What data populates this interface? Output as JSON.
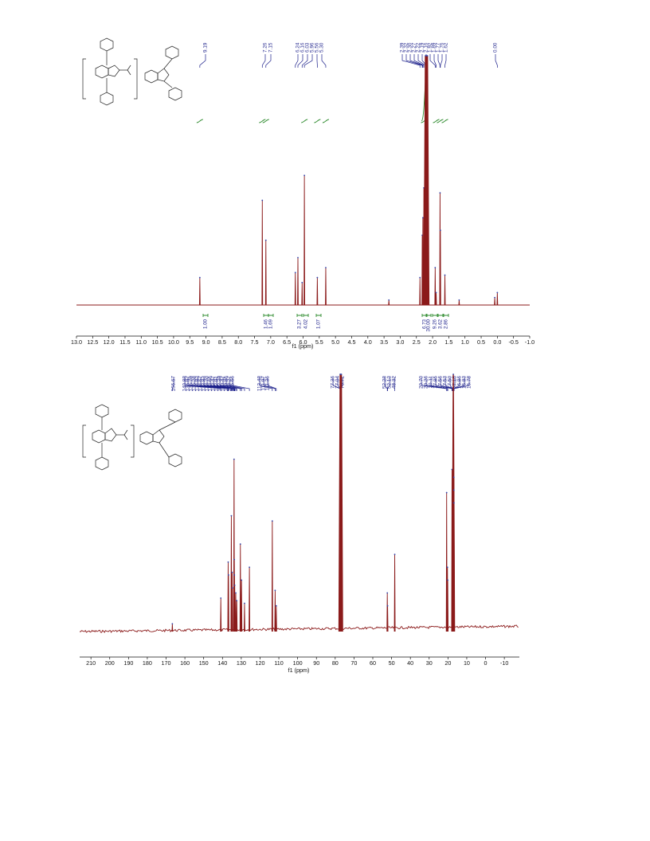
{
  "chart_data": [
    {
      "type": "line",
      "xlabel": "f1 (ppm)",
      "x_reversed": true,
      "xlim": [
        13.0,
        -1.0
      ],
      "xticks": [
        "13.0",
        "12.5",
        "12.0",
        "11.5",
        "11.0",
        "10.5",
        "10.0",
        "9.5",
        "9.0",
        "8.5",
        "8.0",
        "7.5",
        "7.0",
        "6.5",
        "6.0",
        "5.5",
        "5.0",
        "4.5",
        "4.0",
        "3.5",
        "3.0",
        "2.5",
        "2.0",
        "1.5",
        "1.0",
        "0.5",
        "0.0",
        "-0.5",
        "-1.0"
      ],
      "xtick_values": [
        13.0,
        12.5,
        12.0,
        11.5,
        11.0,
        10.5,
        10.0,
        9.5,
        9.0,
        8.5,
        8.0,
        7.5,
        7.0,
        6.5,
        6.0,
        5.5,
        5.0,
        4.5,
        4.0,
        3.5,
        3.0,
        2.5,
        2.0,
        1.5,
        1.0,
        0.5,
        0.0,
        -0.5,
        -1.0
      ],
      "peak_labels": [
        {
          "group": "9.19",
          "items": [
            "9.19"
          ]
        },
        {
          "group": "7.2",
          "items": [
            "7.26",
            "7.15"
          ]
        },
        {
          "group": "6",
          "items": [
            "6.24",
            "6.16",
            "6.03",
            "5.96",
            "5.56",
            "5.30"
          ]
        },
        {
          "group": "2",
          "items": [
            "2.39",
            "2.32",
            "2.30",
            "2.27",
            "2.22",
            "2.19",
            "2.16",
            "1.92",
            "1.89",
            "1.77",
            "1.76",
            "1.62"
          ]
        },
        {
          "group": "0",
          "items": [
            "0.00"
          ]
        }
      ],
      "integrals": [
        {
          "ppm": 9.19,
          "value": "1.00"
        },
        {
          "ppm": 7.26,
          "value": "1.46"
        },
        {
          "ppm": 7.15,
          "value": "1.69"
        },
        {
          "ppm": 5.96,
          "value": "3.27"
        },
        {
          "ppm": 5.56,
          "value": "4.02"
        },
        {
          "ppm": 5.3,
          "value": "1.07"
        },
        {
          "ppm": 2.26,
          "value": "6.73"
        },
        {
          "ppm": 2.19,
          "value": "30.00"
        },
        {
          "ppm": 1.89,
          "value": "9.26"
        },
        {
          "ppm": 1.77,
          "value": "3.62"
        },
        {
          "ppm": 1.62,
          "value": "2.86"
        }
      ],
      "peaks": [
        {
          "x": 9.19,
          "y": 0.11
        },
        {
          "x": 7.26,
          "y": 0.42
        },
        {
          "x": 7.15,
          "y": 0.26
        },
        {
          "x": 6.24,
          "y": 0.13
        },
        {
          "x": 6.16,
          "y": 0.19
        },
        {
          "x": 6.03,
          "y": 0.09
        },
        {
          "x": 5.96,
          "y": 0.52
        },
        {
          "x": 5.56,
          "y": 0.11
        },
        {
          "x": 5.3,
          "y": 0.15
        },
        {
          "x": 3.35,
          "y": 0.02
        },
        {
          "x": 2.39,
          "y": 0.11
        },
        {
          "x": 2.32,
          "y": 0.28
        },
        {
          "x": 2.3,
          "y": 0.35
        },
        {
          "x": 2.27,
          "y": 0.47
        },
        {
          "x": 2.22,
          "y": 1.0
        },
        {
          "x": 2.19,
          "y": 1.0
        },
        {
          "x": 2.16,
          "y": 1.0
        },
        {
          "x": 1.92,
          "y": 0.15
        },
        {
          "x": 1.89,
          "y": 0.05
        },
        {
          "x": 1.77,
          "y": 0.45
        },
        {
          "x": 1.76,
          "y": 0.3
        },
        {
          "x": 1.62,
          "y": 0.12
        },
        {
          "x": 1.18,
          "y": 0.02
        },
        {
          "x": 0.08,
          "y": 0.03
        },
        {
          "x": 0.0,
          "y": 0.05
        }
      ]
    },
    {
      "type": "line",
      "xlabel": "f1 (ppm)",
      "x_reversed": true,
      "xlim": [
        216,
        -18
      ],
      "xticks": [
        "210",
        "200",
        "190",
        "180",
        "170",
        "160",
        "150",
        "140",
        "130",
        "120",
        "110",
        "100",
        "90",
        "80",
        "70",
        "60",
        "50",
        "40",
        "30",
        "20",
        "10",
        "0",
        "-10"
      ],
      "xtick_values": [
        210,
        200,
        190,
        180,
        170,
        160,
        150,
        140,
        130,
        120,
        110,
        100,
        90,
        80,
        70,
        60,
        50,
        40,
        30,
        20,
        10,
        0,
        -10
      ],
      "peak_labels": [
        {
          "group": "166",
          "items": [
            "166.67"
          ]
        },
        {
          "group": "aromatic",
          "items": [
            "140.88",
            "136.97",
            "136.79",
            "135.28",
            "134.83",
            "134.67",
            "133.83",
            "133.70",
            "133.65",
            "133.47",
            "132.91",
            "132.39",
            "130.47",
            "129.85",
            "128.27",
            "125.66",
            "113.48",
            "111.97",
            "111.36"
          ]
        },
        {
          "group": "cdcl3",
          "items": [
            "77.36",
            "77.04",
            "76.72"
          ]
        },
        {
          "group": "50",
          "items": [
            "52.28",
            "52.13",
            "48.32"
          ]
        },
        {
          "group": "aliphatic",
          "items": [
            "20.70",
            "20.26",
            "20.11",
            "17.85",
            "17.56",
            "17.53",
            "17.50",
            "17.15",
            "16.86",
            "16.83",
            "16.78"
          ]
        }
      ],
      "peaks": [
        {
          "x": 166.67,
          "y": 0.03
        },
        {
          "x": 140.88,
          "y": 0.13
        },
        {
          "x": 136.97,
          "y": 0.27
        },
        {
          "x": 136.79,
          "y": 0.22
        },
        {
          "x": 135.28,
          "y": 0.45
        },
        {
          "x": 134.83,
          "y": 0.23
        },
        {
          "x": 134.67,
          "y": 0.17
        },
        {
          "x": 133.83,
          "y": 0.67
        },
        {
          "x": 133.7,
          "y": 0.28
        },
        {
          "x": 133.65,
          "y": 0.22
        },
        {
          "x": 133.47,
          "y": 0.18
        },
        {
          "x": 132.91,
          "y": 0.15
        },
        {
          "x": 132.39,
          "y": 0.12
        },
        {
          "x": 130.47,
          "y": 0.34
        },
        {
          "x": 129.85,
          "y": 0.2
        },
        {
          "x": 128.27,
          "y": 0.11
        },
        {
          "x": 125.66,
          "y": 0.25
        },
        {
          "x": 113.48,
          "y": 0.43
        },
        {
          "x": 111.97,
          "y": 0.16
        },
        {
          "x": 111.36,
          "y": 0.1
        },
        {
          "x": 77.36,
          "y": 1.0
        },
        {
          "x": 77.04,
          "y": 1.0
        },
        {
          "x": 76.72,
          "y": 1.0
        },
        {
          "x": 52.28,
          "y": 0.15
        },
        {
          "x": 52.13,
          "y": 0.1
        },
        {
          "x": 48.32,
          "y": 0.3
        },
        {
          "x": 20.7,
          "y": 0.54
        },
        {
          "x": 20.26,
          "y": 0.25
        },
        {
          "x": 20.11,
          "y": 0.2
        },
        {
          "x": 17.85,
          "y": 0.63
        },
        {
          "x": 17.56,
          "y": 0.5
        },
        {
          "x": 17.53,
          "y": 0.45
        },
        {
          "x": 17.5,
          "y": 0.4
        },
        {
          "x": 17.15,
          "y": 1.0
        },
        {
          "x": 16.86,
          "y": 0.6
        },
        {
          "x": 16.83,
          "y": 0.55
        },
        {
          "x": 16.78,
          "y": 0.5
        }
      ]
    }
  ],
  "colors": {
    "spectrum": "#8b1a1a",
    "labels": "#1b1f8a",
    "integral": "#2e8b2e",
    "axis": "#111111"
  }
}
